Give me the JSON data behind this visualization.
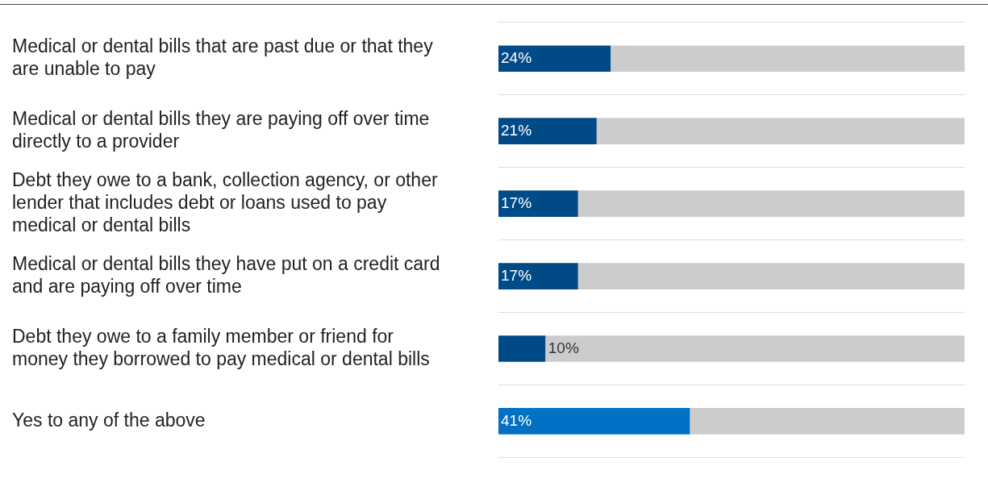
{
  "chart_data": {
    "type": "bar",
    "orientation": "horizontal",
    "stacked": true,
    "categories": [
      "Medical or dental bills that are past due or that they are unable to pay",
      "Medical or dental bills they are paying off over time directly to a provider",
      "Debt they owe to a bank, collection agency, or other lender that includes debt or loans used to pay medical or dental bills",
      "Medical or dental bills they have put on a credit card and are paying off over time",
      "Debt they owe to a family member or friend for money they borrowed to pay medical or dental bills",
      "Yes to any of the above"
    ],
    "series": [
      {
        "colors": [
          "#004a87",
          "#004a87",
          "#004a87",
          "#004a87",
          "#004a87",
          "#0071c5"
        ],
        "values": [
          24,
          21,
          17,
          17,
          10,
          41
        ],
        "value_labels": [
          "24%",
          "21%",
          "17%",
          "17%",
          "10%",
          "41%"
        ]
      },
      {
        "color": "#cccccc",
        "values": [
          76,
          79,
          83,
          83,
          90,
          59
        ]
      }
    ],
    "xlim": [
      0,
      100
    ],
    "tick_labels": "y",
    "grid": "y",
    "legend": false
  }
}
